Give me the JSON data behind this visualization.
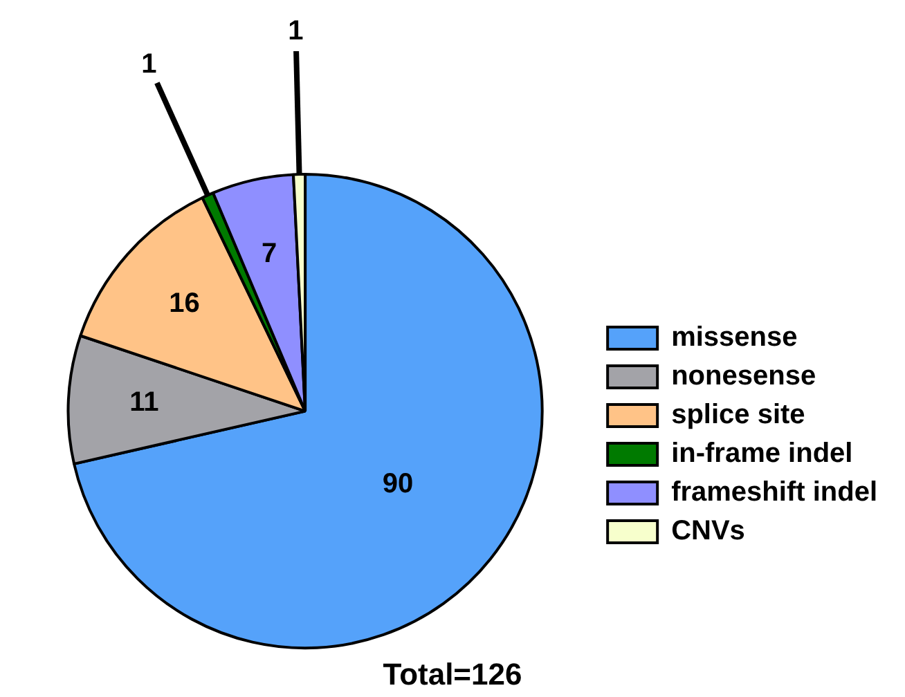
{
  "chart_data": {
    "type": "pie",
    "title": "Total=126",
    "categories": [
      "missense",
      "nonesense",
      "splice site",
      "in-frame indel",
      "frameshift indel",
      "CNVs"
    ],
    "values": [
      90,
      11,
      16,
      1,
      7,
      1
    ],
    "colors": [
      "#55a2fa",
      "#a3a3a8",
      "#ffc387",
      "#007a00",
      "#8f8fff",
      "#f7ffcc"
    ],
    "data_labels": true,
    "legend": "right"
  }
}
